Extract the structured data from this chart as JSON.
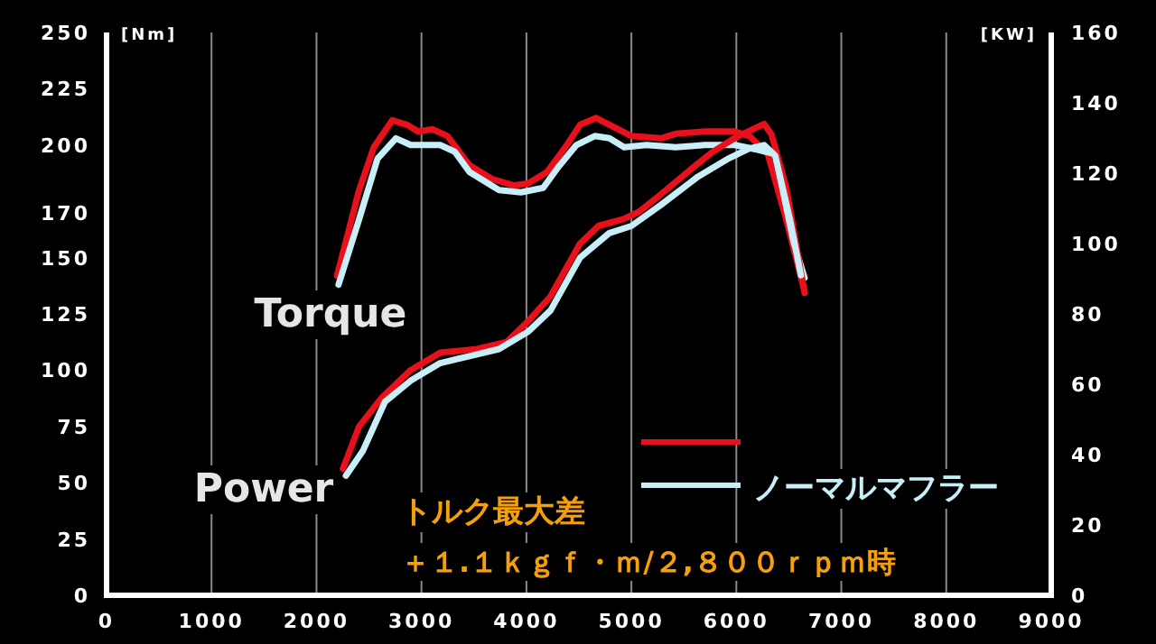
{
  "chart_data": {
    "type": "line",
    "ylabel": "[Nm]",
    "y2label": "[KW]",
    "xlim": [
      0,
      9000
    ],
    "xticks": [
      0,
      1000,
      2000,
      3000,
      4000,
      5000,
      6000,
      7000,
      8000,
      9000
    ],
    "ylim": [
      0,
      250
    ],
    "yticks": [
      0,
      25,
      50,
      75,
      100,
      125,
      150,
      170,
      200,
      225,
      250
    ],
    "y2lim": [
      0,
      160
    ],
    "y2ticks": [
      0,
      20,
      40,
      60,
      80,
      100,
      120,
      140,
      160
    ],
    "grid": "x",
    "legend": "bottom right",
    "series": [
      {
        "color": "#e8101a",
        "x": [
          2196,
          2406,
          2546,
          2722,
          2862,
          2967,
          3108,
          3248,
          3458,
          3669,
          3879,
          4019,
          4195,
          4370,
          4511,
          4665,
          4791,
          5001,
          5282,
          5423,
          5703,
          5984,
          6124,
          6300,
          6475,
          6650
        ],
        "values": [
          142,
          180,
          199,
          211,
          209,
          206,
          207,
          204,
          191,
          185,
          182,
          183,
          188,
          199,
          209,
          212,
          209,
          204,
          203,
          205,
          206,
          206,
          204,
          196,
          167,
          135
        ]
      },
      {
        "name": "ノーマルマフラー",
        "color": "#c8eef8",
        "x": [
          2210,
          2406,
          2582,
          2757,
          2897,
          3178,
          3318,
          3458,
          3739,
          3949,
          4160,
          4300,
          4476,
          4651,
          4791,
          4931,
          5142,
          5423,
          5703,
          5984,
          6194,
          6370,
          6545,
          6650
        ],
        "values": [
          138,
          167,
          194,
          203,
          200,
          200,
          197,
          188,
          180,
          179,
          181,
          190,
          200,
          204,
          203,
          199,
          200,
          199,
          200,
          200,
          198,
          196,
          157,
          141
        ]
      },
      {
        "color": "#e8101a",
        "axis": "y2",
        "x": [
          2252,
          2406,
          2617,
          2897,
          3178,
          3529,
          3810,
          4019,
          4230,
          4511,
          4686,
          4931,
          5071,
          5282,
          5563,
          5773,
          5984,
          6124,
          6265,
          6335,
          6475,
          6650
        ],
        "values": [
          36,
          48,
          56,
          64,
          69,
          70,
          72,
          78,
          85,
          100,
          105,
          107,
          109,
          114,
          121,
          126,
          130,
          132,
          134,
          131,
          116,
          86
        ]
      },
      {
        "color": "#c8eef8",
        "axis": "y2",
        "x": [
          2280,
          2441,
          2652,
          2897,
          3178,
          3458,
          3739,
          4019,
          4230,
          4511,
          4791,
          5001,
          5282,
          5633,
          5914,
          6124,
          6265,
          6370,
          6510,
          6615
        ],
        "values": [
          34,
          41,
          55,
          61,
          66,
          68,
          70,
          75,
          81,
          96,
          103,
          105,
          111,
          119,
          124,
          127,
          128,
          125,
          107,
          91
        ]
      }
    ],
    "annotations": [
      "Torque",
      "Power",
      "トルク最大差",
      "＋１.１ｋｇｆ・ｍ/２,８００ｒｐｍ時"
    ]
  }
}
